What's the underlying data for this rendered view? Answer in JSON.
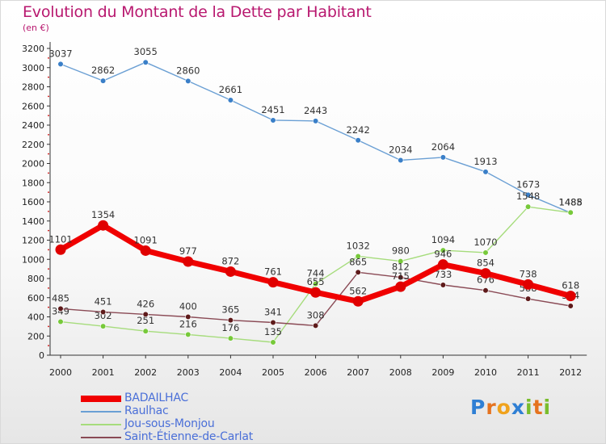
{
  "title": "Evolution du Montant de la Dette par Habitant",
  "subtitle": "(en €)",
  "logo": {
    "text": "Proxiti",
    "letters": [
      "P",
      "r",
      "o",
      "x",
      "i",
      "t",
      "i"
    ],
    "letter_colors": [
      "#2f7fd4",
      "#e5731f",
      "#f0a21c",
      "#2f7fd4",
      "#79bd2c",
      "#e5731f",
      "#79bd2c"
    ]
  },
  "colors": {
    "title": "#b8186f",
    "legend_text": "#4a6fd8",
    "axis": "#333333"
  },
  "chart_data": {
    "type": "line",
    "title": "Evolution du Montant de la Dette par Habitant",
    "subtitle": "(en €)",
    "xlabel": "",
    "ylabel": "",
    "ylim": [
      0,
      3200
    ],
    "y_ticks": [
      0,
      200,
      400,
      600,
      800,
      1000,
      1200,
      1400,
      1600,
      1800,
      2000,
      2200,
      2400,
      2600,
      2800,
      3000,
      3200
    ],
    "x": [
      2000,
      2001,
      2002,
      2003,
      2004,
      2005,
      2006,
      2007,
      2008,
      2009,
      2010,
      2011,
      2012
    ],
    "x_labels": [
      "2000",
      "2001",
      "2002",
      "2003",
      "2004",
      "2005",
      "2006",
      "2007",
      "2008",
      "2009",
      "2010",
      "2011",
      "2012"
    ],
    "grid": false,
    "legend_position": "bottom-left",
    "series": [
      {
        "name": "BADAILHAC",
        "color": "#f00000",
        "point_color": "#e00000",
        "emphasis": true,
        "values": [
          1101,
          1354,
          1091,
          977,
          872,
          761,
          655,
          562,
          715,
          946,
          854,
          738,
          618
        ],
        "value_labels": [
          "1101",
          "1354",
          "1091",
          "977",
          "872",
          "761",
          "655",
          "562",
          "715",
          "946",
          "854",
          "738",
          "618"
        ]
      },
      {
        "name": "Raulhac",
        "color": "#6a9fd4",
        "point_color": "#3a7fc8",
        "emphasis": false,
        "values": [
          3037,
          2862,
          3055,
          2860,
          2661,
          2451,
          2443,
          2242,
          2034,
          2064,
          1913,
          1673,
          1485
        ],
        "value_labels": [
          "3037",
          "2862",
          "3055",
          "2860",
          "2661",
          "2451",
          "2443",
          "2242",
          "2034",
          "2064",
          "1913",
          "1673",
          "1485"
        ]
      },
      {
        "name": "Jou-sous-Monjou",
        "color": "#a6dc7c",
        "point_color": "#77c93a",
        "emphasis": false,
        "values": [
          349,
          302,
          251,
          216,
          176,
          135,
          744,
          1032,
          980,
          1094,
          1070,
          1548,
          1488
        ],
        "value_labels": [
          "349",
          "302",
          "251",
          "216",
          "176",
          "135",
          "744",
          "1032",
          "980",
          "1094",
          "1070",
          "1548",
          "1488"
        ]
      },
      {
        "name": "Saint-Étienne-de-Carlat",
        "color": "#8a4a55",
        "point_color": "#5e1a1a",
        "emphasis": false,
        "values": [
          485,
          451,
          426,
          400,
          365,
          341,
          308,
          865,
          812,
          733,
          676,
          588,
          514
        ],
        "value_labels": [
          "485",
          "451",
          "426",
          "400",
          "365",
          "341",
          "308",
          "865",
          "812",
          "733",
          "676",
          "588",
          "514"
        ]
      }
    ]
  }
}
